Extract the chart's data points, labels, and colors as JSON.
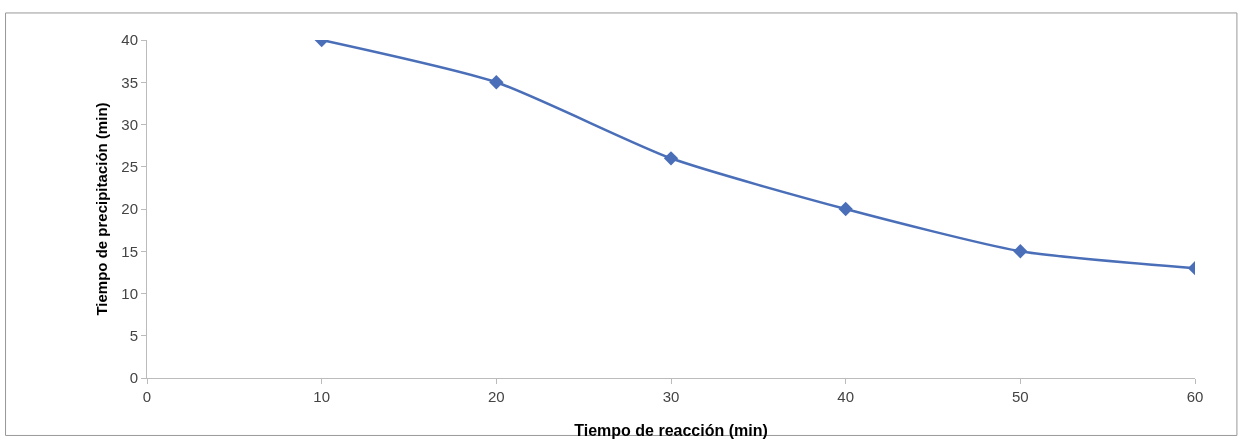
{
  "chart_data": {
    "type": "line",
    "xlabel": "Tiempo de reacción (min)",
    "ylabel": "Tiempo de precipitación (min)",
    "x": [
      10,
      20,
      30,
      40,
      50,
      60
    ],
    "series": [
      {
        "color": "#4a6fb8",
        "values": [
          40,
          35,
          26,
          20,
          15,
          13
        ]
      }
    ],
    "xlim": [
      0,
      60
    ],
    "xticks": [
      0,
      10,
      20,
      30,
      40,
      50,
      60
    ],
    "ylim": [
      0,
      40
    ],
    "yticks": [
      0,
      5,
      10,
      15,
      20,
      25,
      30,
      35,
      40
    ],
    "grid": false,
    "marker": "diamond",
    "line_style": "solid"
  }
}
